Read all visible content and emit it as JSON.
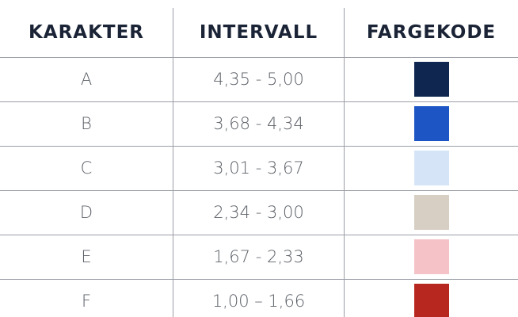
{
  "table": {
    "header": [
      "KARAKTER",
      "INTERVALL",
      "FARGEKODE"
    ],
    "rows": [
      {
        "grade": "A",
        "interval": "4,35 - 5,00",
        "color": "#0f2650"
      },
      {
        "grade": "B",
        "interval": "3,68 - 4,34",
        "color": "#1d55c4"
      },
      {
        "grade": "C",
        "interval": "3,01 - 3,67",
        "color": "#d6e4f7"
      },
      {
        "grade": "D",
        "interval": "2,34 - 3,00",
        "color": "#d7cfc4"
      },
      {
        "grade": "E",
        "interval": "1,67 - 2,33",
        "color": "#f4c2c7"
      },
      {
        "grade": "F",
        "interval": "1,00 – 1,66",
        "color": "#b8271f"
      }
    ]
  }
}
